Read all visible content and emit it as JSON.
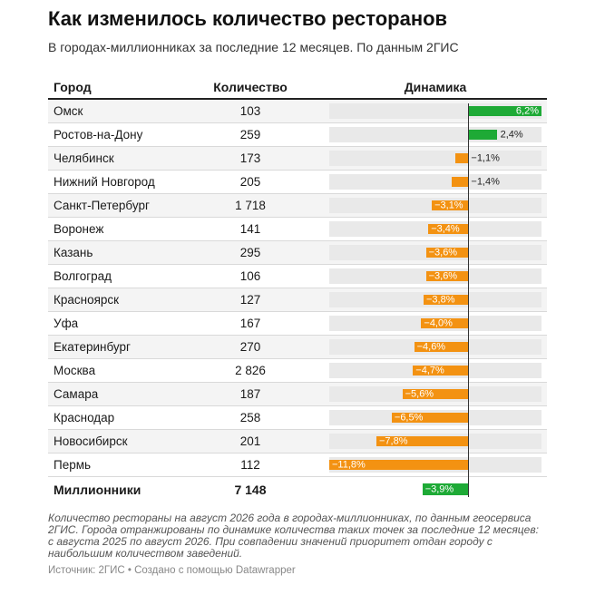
{
  "title": "Как изменилось количество ресторанов",
  "subtitle": "В городах-миллионниках за последние 12 месяцев. По данным 2ГИС",
  "note": "Количество рестораны на август 2026 года в городах-миллионниках, по данным геосервиса 2ГИС. Города отранжированы по динамике количества таких точек за последние 12 месяцев: с августа 2025 по август 2026. При совпадении значений приоритет отдан городу с наибольшим количеством заведений.",
  "source": "Источник: 2ГИС • Создано с помощью Datawrapper",
  "colors": {
    "positive": "#1eaa36",
    "negative": "#f39212",
    "bar_background": "#e9e9e9",
    "stripe": "#f4f4f4"
  },
  "chart_data": {
    "type": "table",
    "columns": [
      "Город",
      "Количество",
      "Динамика"
    ],
    "value_unit": "%",
    "range": [
      -11.8,
      6.2
    ],
    "rows": [
      {
        "city": "Омск",
        "count": "103",
        "change": 6.2,
        "label": "6,2%"
      },
      {
        "city": "Ростов-на-Дону",
        "count": "259",
        "change": 2.4,
        "label": "2,4%"
      },
      {
        "city": "Челябинск",
        "count": "173",
        "change": -1.1,
        "label": "−1,1%"
      },
      {
        "city": "Нижний Новгород",
        "count": "205",
        "change": -1.4,
        "label": "−1,4%"
      },
      {
        "city": "Санкт-Петербург",
        "count": "1 718",
        "change": -3.1,
        "label": "−3,1%"
      },
      {
        "city": "Воронеж",
        "count": "141",
        "change": -3.4,
        "label": "−3,4%"
      },
      {
        "city": "Казань",
        "count": "295",
        "change": -3.6,
        "label": "−3,6%"
      },
      {
        "city": "Волгоград",
        "count": "106",
        "change": -3.6,
        "label": "−3,6%"
      },
      {
        "city": "Красноярск",
        "count": "127",
        "change": -3.8,
        "label": "−3,8%"
      },
      {
        "city": "Уфа",
        "count": "167",
        "change": -4.0,
        "label": "−4,0%"
      },
      {
        "city": "Екатеринбург",
        "count": "270",
        "change": -4.6,
        "label": "−4,6%"
      },
      {
        "city": "Москва",
        "count": "2 826",
        "change": -4.7,
        "label": "−4,7%"
      },
      {
        "city": "Самара",
        "count": "187",
        "change": -5.6,
        "label": "−5,6%"
      },
      {
        "city": "Краснодар",
        "count": "258",
        "change": -6.5,
        "label": "−6,5%"
      },
      {
        "city": "Новосибирск",
        "count": "201",
        "change": -7.8,
        "label": "−7,8%"
      },
      {
        "city": "Пермь",
        "count": "112",
        "change": -11.8,
        "label": "−11,8%"
      }
    ],
    "total": {
      "city": "Миллионники",
      "count": "7 148",
      "change": -3.9,
      "label": "−3,9%"
    }
  }
}
